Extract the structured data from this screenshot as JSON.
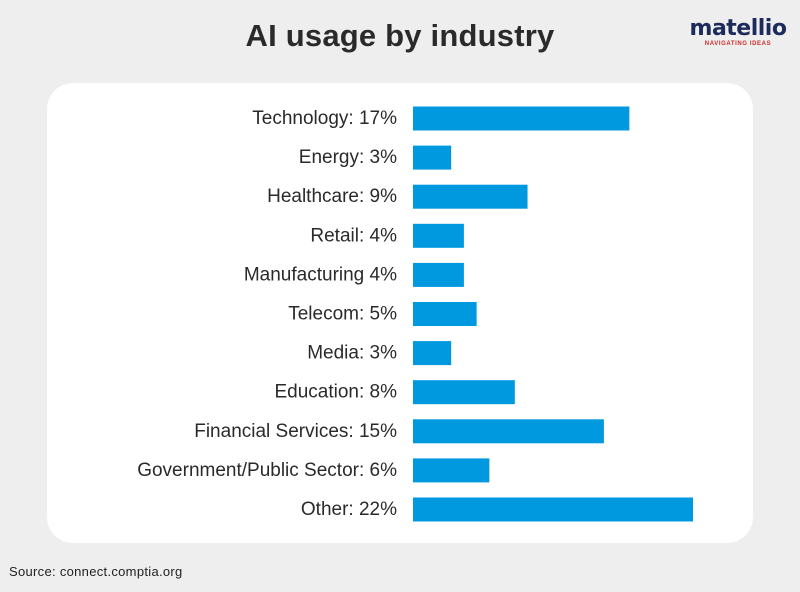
{
  "title": "AI usage by industry",
  "logo": {
    "word": "matellio",
    "tagline": "NAVIGATING IDEAS"
  },
  "source": "Source: connect.comptia.org",
  "colors": {
    "bar": "#0099e0",
    "text": "#2a2a2a",
    "card": "#ffffff",
    "background": "#eeeeee"
  },
  "chart_data": {
    "type": "bar",
    "orientation": "horizontal",
    "title": "AI usage by industry",
    "categories": [
      "Technology",
      "Energy",
      "Healthcare",
      "Retail",
      "Manufacturing",
      "Telecom",
      "Media",
      "Education",
      "Financial Services",
      "Government/Public Sector",
      "Other"
    ],
    "labels": [
      "Technology: 17%",
      "Energy: 3%",
      "Healthcare: 9%",
      "Retail: 4%",
      "Manufacturing 4%",
      "Telecom: 5%",
      "Media: 3%",
      "Education: 8%",
      "Financial Services: 15%",
      "Government/Public Sector: 6%",
      "Other: 22%"
    ],
    "values": [
      17,
      3,
      9,
      4,
      4,
      5,
      3,
      8,
      15,
      6,
      22
    ],
    "unit": "%",
    "xlim": [
      0,
      22
    ],
    "grid": false,
    "legend": "none"
  }
}
